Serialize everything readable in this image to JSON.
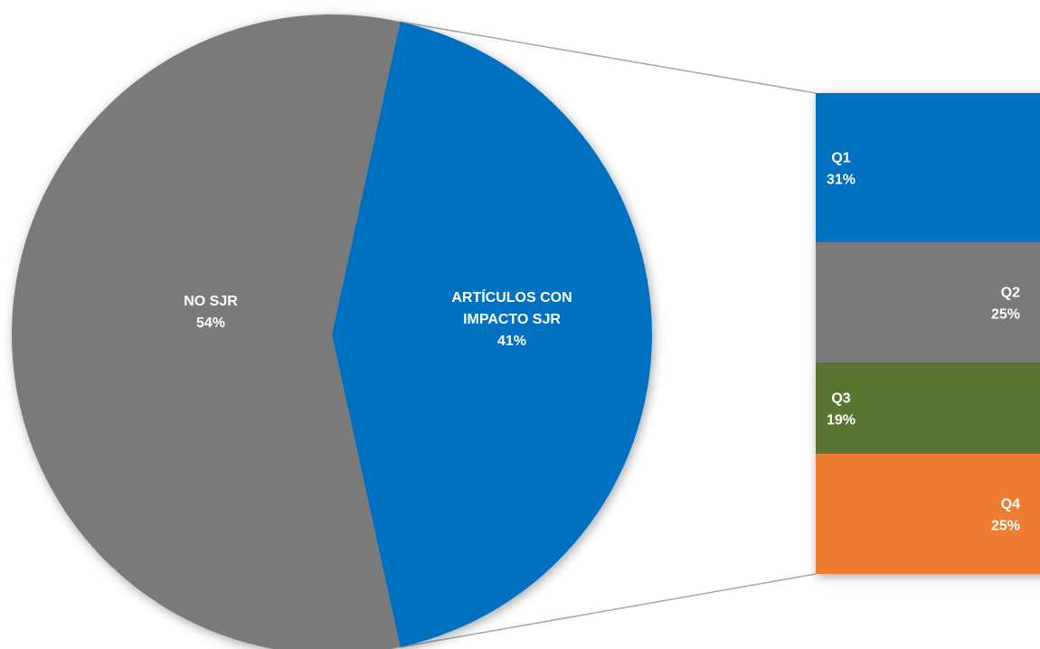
{
  "chart_data": {
    "type": "pie",
    "subtype": "bar-of-pie",
    "pie": {
      "slices": [
        {
          "label": "NO SJR",
          "percent_label": "54%",
          "value": 54,
          "color": "#7a7a7a"
        },
        {
          "label": "ARTÍCULOS CON IMPACTO SJR",
          "label_lines": [
            "ARTÍCULOS CON",
            "IMPACTO SJR"
          ],
          "percent_label": "41%",
          "value": 41,
          "color": "#0070c0"
        }
      ]
    },
    "breakdown": {
      "of": "ARTÍCULOS CON IMPACTO SJR",
      "segments": [
        {
          "label": "Q1",
          "percent_label": "31%",
          "value": 31,
          "color": "#0070c0"
        },
        {
          "label": "Q2",
          "percent_label": "25%",
          "value": 25,
          "color": "#7a7a7a"
        },
        {
          "label": "Q3",
          "percent_label": "19%",
          "value": 19,
          "color": "#5a7433"
        },
        {
          "label": "Q4",
          "percent_label": "25%",
          "value": 25,
          "color": "#ed7d31"
        }
      ]
    },
    "connector_color": "#a6a6a6",
    "title": "",
    "legend": "none"
  }
}
